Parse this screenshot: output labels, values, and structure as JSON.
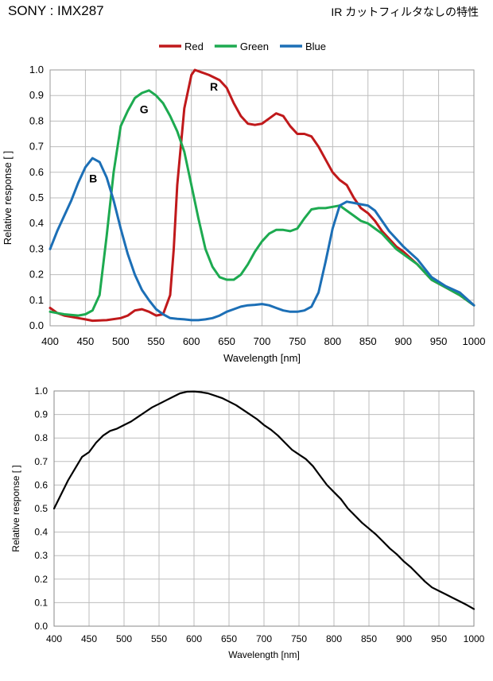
{
  "header": {
    "left": "SONY : IMX287",
    "right": "IR カットフィルタなしの特性"
  },
  "chart_data": [
    {
      "type": "line",
      "title": "",
      "xlabel": "Wavelength [nm]",
      "ylabel": "Relative response [ ]",
      "xlim": [
        400,
        1000
      ],
      "ylim": [
        0,
        1.0
      ],
      "x_ticks": [
        "400",
        "450",
        "500",
        "550",
        "600",
        "650",
        "700",
        "750",
        "800",
        "850",
        "900",
        "950",
        "1000"
      ],
      "y_ticks": [
        "0.0",
        "0.1",
        "0.2",
        "0.3",
        "0.4",
        "0.5",
        "0.6",
        "0.7",
        "0.8",
        "0.9",
        "1.0"
      ],
      "grid": true,
      "legend_position": "top-center",
      "annotations": [
        {
          "text": "R",
          "x": 632,
          "y": 0.92
        },
        {
          "text": "G",
          "x": 533,
          "y": 0.83
        },
        {
          "text": "B",
          "x": 461,
          "y": 0.56
        }
      ],
      "series": [
        {
          "name": "Red",
          "color": "#c0191b",
          "points": [
            [
              400,
              0.07
            ],
            [
              410,
              0.05
            ],
            [
              420,
              0.04
            ],
            [
              440,
              0.03
            ],
            [
              450,
              0.025
            ],
            [
              460,
              0.02
            ],
            [
              480,
              0.022
            ],
            [
              500,
              0.03
            ],
            [
              510,
              0.04
            ],
            [
              520,
              0.06
            ],
            [
              530,
              0.065
            ],
            [
              540,
              0.055
            ],
            [
              550,
              0.04
            ],
            [
              560,
              0.045
            ],
            [
              570,
              0.12
            ],
            [
              575,
              0.3
            ],
            [
              580,
              0.55
            ],
            [
              590,
              0.85
            ],
            [
              600,
              0.98
            ],
            [
              605,
              1.0
            ],
            [
              615,
              0.99
            ],
            [
              625,
              0.98
            ],
            [
              640,
              0.96
            ],
            [
              650,
              0.93
            ],
            [
              660,
              0.87
            ],
            [
              670,
              0.82
            ],
            [
              680,
              0.79
            ],
            [
              690,
              0.785
            ],
            [
              700,
              0.79
            ],
            [
              710,
              0.81
            ],
            [
              720,
              0.83
            ],
            [
              730,
              0.82
            ],
            [
              740,
              0.78
            ],
            [
              750,
              0.75
            ],
            [
              760,
              0.75
            ],
            [
              770,
              0.74
            ],
            [
              780,
              0.7
            ],
            [
              790,
              0.65
            ],
            [
              800,
              0.6
            ],
            [
              810,
              0.57
            ],
            [
              820,
              0.55
            ],
            [
              830,
              0.5
            ],
            [
              840,
              0.46
            ],
            [
              850,
              0.44
            ],
            [
              860,
              0.41
            ],
            [
              870,
              0.37
            ],
            [
              880,
              0.34
            ],
            [
              890,
              0.31
            ],
            [
              900,
              0.29
            ],
            [
              920,
              0.24
            ],
            [
              940,
              0.18
            ],
            [
              960,
              0.15
            ],
            [
              980,
              0.12
            ],
            [
              1000,
              0.08
            ]
          ]
        },
        {
          "name": "Green",
          "color": "#1daa50",
          "points": [
            [
              400,
              0.055
            ],
            [
              420,
              0.045
            ],
            [
              440,
              0.04
            ],
            [
              450,
              0.045
            ],
            [
              460,
              0.06
            ],
            [
              470,
              0.12
            ],
            [
              480,
              0.35
            ],
            [
              490,
              0.6
            ],
            [
              500,
              0.78
            ],
            [
              510,
              0.84
            ],
            [
              520,
              0.89
            ],
            [
              530,
              0.91
            ],
            [
              540,
              0.92
            ],
            [
              550,
              0.9
            ],
            [
              560,
              0.87
            ],
            [
              570,
              0.82
            ],
            [
              580,
              0.76
            ],
            [
              590,
              0.68
            ],
            [
              600,
              0.55
            ],
            [
              610,
              0.42
            ],
            [
              620,
              0.3
            ],
            [
              630,
              0.23
            ],
            [
              640,
              0.19
            ],
            [
              650,
              0.18
            ],
            [
              660,
              0.18
            ],
            [
              670,
              0.2
            ],
            [
              680,
              0.24
            ],
            [
              690,
              0.29
            ],
            [
              700,
              0.33
            ],
            [
              710,
              0.36
            ],
            [
              720,
              0.375
            ],
            [
              730,
              0.375
            ],
            [
              740,
              0.37
            ],
            [
              750,
              0.38
            ],
            [
              760,
              0.42
            ],
            [
              770,
              0.455
            ],
            [
              780,
              0.46
            ],
            [
              790,
              0.46
            ],
            [
              800,
              0.465
            ],
            [
              810,
              0.47
            ],
            [
              820,
              0.45
            ],
            [
              830,
              0.43
            ],
            [
              840,
              0.41
            ],
            [
              850,
              0.4
            ],
            [
              860,
              0.38
            ],
            [
              870,
              0.36
            ],
            [
              880,
              0.33
            ],
            [
              890,
              0.3
            ],
            [
              900,
              0.28
            ],
            [
              920,
              0.24
            ],
            [
              940,
              0.18
            ],
            [
              960,
              0.15
            ],
            [
              980,
              0.12
            ],
            [
              1000,
              0.08
            ]
          ]
        },
        {
          "name": "Blue",
          "color": "#1c6fb6",
          "points": [
            [
              400,
              0.3
            ],
            [
              410,
              0.37
            ],
            [
              420,
              0.43
            ],
            [
              430,
              0.49
            ],
            [
              440,
              0.56
            ],
            [
              450,
              0.62
            ],
            [
              460,
              0.655
            ],
            [
              470,
              0.64
            ],
            [
              480,
              0.58
            ],
            [
              490,
              0.49
            ],
            [
              500,
              0.38
            ],
            [
              510,
              0.28
            ],
            [
              520,
              0.2
            ],
            [
              530,
              0.14
            ],
            [
              540,
              0.1
            ],
            [
              550,
              0.065
            ],
            [
              560,
              0.045
            ],
            [
              570,
              0.03
            ],
            [
              580,
              0.027
            ],
            [
              590,
              0.025
            ],
            [
              600,
              0.022
            ],
            [
              610,
              0.022
            ],
            [
              620,
              0.025
            ],
            [
              630,
              0.03
            ],
            [
              640,
              0.04
            ],
            [
              650,
              0.055
            ],
            [
              660,
              0.065
            ],
            [
              670,
              0.075
            ],
            [
              680,
              0.08
            ],
            [
              690,
              0.082
            ],
            [
              700,
              0.085
            ],
            [
              710,
              0.08
            ],
            [
              720,
              0.07
            ],
            [
              730,
              0.06
            ],
            [
              740,
              0.055
            ],
            [
              750,
              0.055
            ],
            [
              760,
              0.06
            ],
            [
              770,
              0.075
            ],
            [
              780,
              0.13
            ],
            [
              790,
              0.25
            ],
            [
              800,
              0.38
            ],
            [
              810,
              0.47
            ],
            [
              820,
              0.485
            ],
            [
              830,
              0.48
            ],
            [
              840,
              0.475
            ],
            [
              850,
              0.47
            ],
            [
              860,
              0.45
            ],
            [
              870,
              0.41
            ],
            [
              880,
              0.37
            ],
            [
              890,
              0.34
            ],
            [
              900,
              0.31
            ],
            [
              920,
              0.26
            ],
            [
              940,
              0.19
            ],
            [
              960,
              0.155
            ],
            [
              980,
              0.13
            ],
            [
              1000,
              0.08
            ]
          ]
        }
      ]
    },
    {
      "type": "line",
      "title": "",
      "xlabel": "Wavelength [nm]",
      "ylabel": "Relative response [ ]",
      "xlim": [
        400,
        1000
      ],
      "ylim": [
        0,
        1.0
      ],
      "x_ticks": [
        "400",
        "450",
        "500",
        "550",
        "600",
        "650",
        "700",
        "750",
        "800",
        "850",
        "900",
        "950",
        "1000"
      ],
      "y_ticks": [
        "0.0",
        "0.1",
        "0.2",
        "0.3",
        "0.4",
        "0.5",
        "0.6",
        "0.7",
        "0.8",
        "0.9",
        "1.0"
      ],
      "grid": true,
      "series": [
        {
          "color": "#000000",
          "points": [
            [
              400,
              0.5
            ],
            [
              410,
              0.56
            ],
            [
              420,
              0.62
            ],
            [
              430,
              0.67
            ],
            [
              440,
              0.72
            ],
            [
              450,
              0.74
            ],
            [
              460,
              0.78
            ],
            [
              470,
              0.81
            ],
            [
              480,
              0.83
            ],
            [
              490,
              0.84
            ],
            [
              500,
              0.855
            ],
            [
              510,
              0.87
            ],
            [
              520,
              0.89
            ],
            [
              530,
              0.91
            ],
            [
              540,
              0.93
            ],
            [
              550,
              0.945
            ],
            [
              560,
              0.96
            ],
            [
              570,
              0.975
            ],
            [
              580,
              0.99
            ],
            [
              590,
              0.997
            ],
            [
              600,
              0.998
            ],
            [
              610,
              0.995
            ],
            [
              620,
              0.99
            ],
            [
              630,
              0.98
            ],
            [
              640,
              0.97
            ],
            [
              650,
              0.955
            ],
            [
              660,
              0.94
            ],
            [
              670,
              0.92
            ],
            [
              680,
              0.9
            ],
            [
              690,
              0.88
            ],
            [
              700,
              0.855
            ],
            [
              710,
              0.835
            ],
            [
              720,
              0.81
            ],
            [
              730,
              0.78
            ],
            [
              740,
              0.75
            ],
            [
              750,
              0.73
            ],
            [
              760,
              0.71
            ],
            [
              770,
              0.68
            ],
            [
              780,
              0.64
            ],
            [
              790,
              0.6
            ],
            [
              800,
              0.57
            ],
            [
              810,
              0.54
            ],
            [
              820,
              0.5
            ],
            [
              830,
              0.47
            ],
            [
              840,
              0.44
            ],
            [
              850,
              0.415
            ],
            [
              860,
              0.39
            ],
            [
              870,
              0.36
            ],
            [
              880,
              0.33
            ],
            [
              890,
              0.305
            ],
            [
              900,
              0.275
            ],
            [
              910,
              0.25
            ],
            [
              920,
              0.22
            ],
            [
              930,
              0.19
            ],
            [
              940,
              0.165
            ],
            [
              950,
              0.15
            ],
            [
              960,
              0.135
            ],
            [
              970,
              0.12
            ],
            [
              980,
              0.105
            ],
            [
              990,
              0.09
            ],
            [
              1000,
              0.073
            ]
          ]
        }
      ]
    }
  ]
}
